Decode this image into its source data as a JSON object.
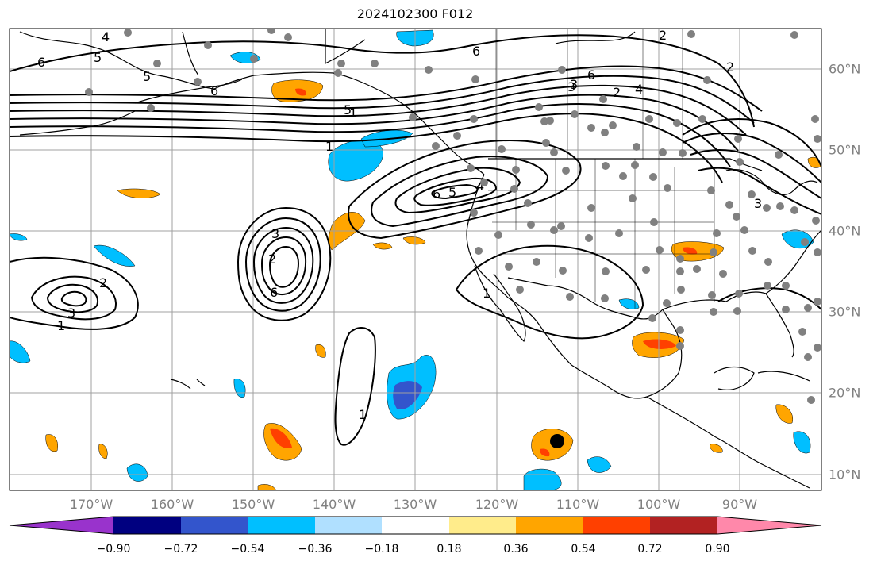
{
  "title": "2024102300 F012",
  "lon_ticks": [
    "170°W",
    "160°W",
    "150°W",
    "140°W",
    "130°W",
    "120°W",
    "110°W",
    "100°W",
    "90°W"
  ],
  "lat_ticks": [
    "60°N",
    "50°N",
    "40°N",
    "30°N",
    "20°N",
    "10°N"
  ],
  "colorbar": {
    "labels": [
      "−0.90",
      "−0.72",
      "−0.54",
      "−0.36",
      "−0.18",
      "0.18",
      "0.36",
      "0.54",
      "0.72",
      "0.90"
    ],
    "colors": [
      "#9933cc",
      "#000080",
      "#3355cc",
      "#00bfff",
      "#b0e0ff",
      "#ffffff",
      "#ffec8b",
      "#ffa500",
      "#ff4000",
      "#b22222",
      "#ff88aa"
    ]
  },
  "contour_labels": [
    "6",
    "5",
    "5",
    "4",
    "5",
    "1",
    "2",
    "3",
    "1",
    "3",
    "2",
    "6",
    "5",
    "4",
    "6",
    "2",
    "3",
    "1",
    "1",
    "3",
    "6",
    "2",
    "1",
    "6",
    "4",
    "6",
    "3",
    "2"
  ],
  "colors": {
    "land_outline": "#000000",
    "grid": "#a0a0a0",
    "station": "#808080",
    "positive": "#ffa500",
    "positive_strong": "#ff4000",
    "negative": "#00bfff",
    "negative_strong": "#3355cc"
  }
}
